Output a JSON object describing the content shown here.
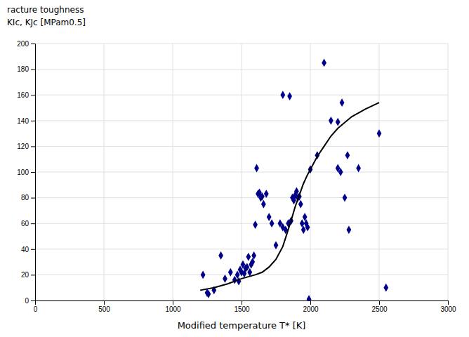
{
  "chart_data": {
    "type": "scatter",
    "xlabel": "Modified temperature T* [K]",
    "annotations": [
      "racture toughness",
      "KIc, KJc [MPam0.5]"
    ],
    "series": [
      {
        "type": "scatter",
        "color": "#00008B",
        "marker": "diamond",
        "x": [
          1220,
          1250,
          1260,
          1300,
          1350,
          1380,
          1420,
          1450,
          1470,
          1480,
          1490,
          1500,
          1510,
          1520,
          1530,
          1540,
          1550,
          1560,
          1570,
          1580,
          1590,
          1600,
          1610,
          1620,
          1630,
          1640,
          1650,
          1660,
          1680,
          1700,
          1720,
          1750,
          1780,
          1800,
          1820,
          1840,
          1860,
          1870,
          1880,
          1890,
          1900,
          1910,
          1920,
          1930,
          1940,
          1950,
          1960,
          1970,
          1980,
          1990,
          2000,
          2050,
          2100,
          2150,
          2200,
          2220,
          2250,
          2280,
          2500,
          2550
        ],
        "values": [
          20,
          6,
          5,
          8,
          35,
          17,
          22,
          16,
          20,
          15,
          24,
          22,
          28,
          21,
          25,
          26,
          34,
          22,
          28,
          30,
          35,
          59,
          103,
          83,
          84,
          80,
          81,
          75,
          83,
          65,
          60,
          43,
          60,
          57,
          55,
          60,
          62,
          80,
          78,
          82,
          85,
          80,
          81,
          75,
          60,
          55,
          65,
          60,
          57,
          1,
          102,
          113,
          185,
          140,
          103,
          100,
          80,
          55,
          130,
          10
        ]
      },
      {
        "type": "scatter",
        "color": "#00008B",
        "marker": "diamond",
        "x": [
          1800,
          1850,
          2200,
          2230,
          2270,
          2350
        ],
        "values": [
          160,
          159,
          139,
          154,
          113,
          103
        ]
      },
      {
        "type": "line",
        "color": "#000000",
        "x": [
          1200,
          1300,
          1400,
          1500,
          1600,
          1650,
          1700,
          1750,
          1800,
          1830,
          1860,
          1890,
          1920,
          1950,
          1980,
          2010,
          2050,
          2100,
          2150,
          2200,
          2300,
          2400,
          2500
        ],
        "values": [
          8,
          10,
          13,
          17,
          20,
          22,
          26,
          32,
          42,
          52,
          62,
          73,
          82,
          91,
          98,
          104,
          112,
          120,
          128,
          134,
          143,
          149,
          154
        ]
      }
    ],
    "xlim": [
      0,
      3000
    ],
    "ylim": [
      0,
      200
    ],
    "xticks": [
      0,
      500,
      1000,
      1500,
      2000,
      2500,
      3000
    ],
    "yticks": [
      0,
      20,
      40,
      60,
      80,
      100,
      120,
      140,
      160,
      180,
      200
    ],
    "grid": true
  }
}
